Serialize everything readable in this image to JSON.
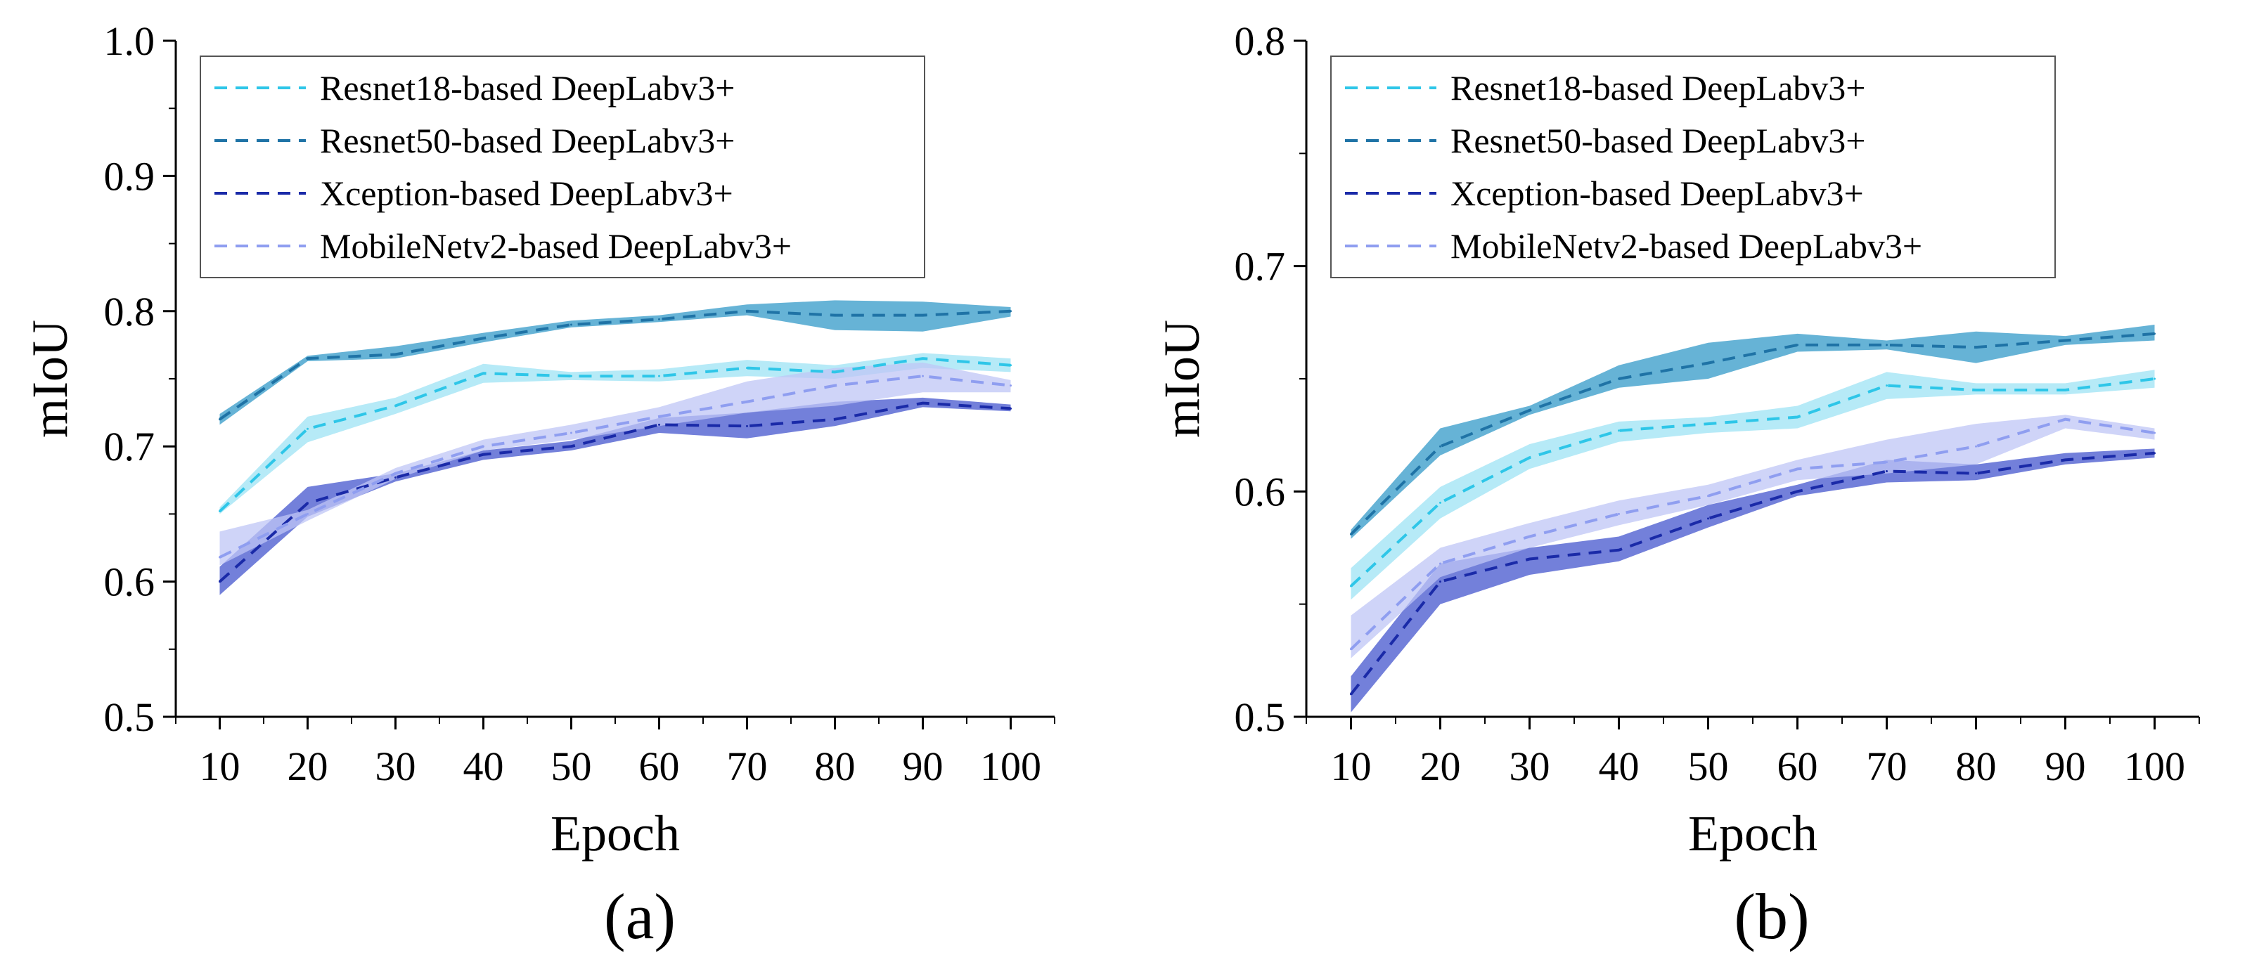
{
  "chart_data": [
    {
      "type": "line",
      "panel_label": "(a)",
      "xlabel": "Epoch",
      "ylabel": "mIoU",
      "xlim": [
        5,
        105
      ],
      "ylim": [
        0.5,
        1.0
      ],
      "x_ticks": [
        10,
        20,
        30,
        40,
        50,
        60,
        70,
        80,
        90,
        100
      ],
      "y_ticks": [
        0.5,
        0.6,
        0.7,
        0.8,
        0.9,
        1.0
      ],
      "y_tick_labels": [
        "0.5",
        "0.6",
        "0.7",
        "0.8",
        "0.9",
        "1.0"
      ],
      "legend_position": "top-left",
      "x": [
        10,
        20,
        30,
        40,
        50,
        60,
        70,
        80,
        90,
        100
      ],
      "series": [
        {
          "name": "Resnet18-based DeepLabv3+",
          "color": "#2ec6e8",
          "band_color": "#a9e6f6",
          "values": [
            0.652,
            0.713,
            0.73,
            0.754,
            0.752,
            0.752,
            0.758,
            0.755,
            0.765,
            0.76
          ],
          "lower": [
            0.65,
            0.703,
            0.724,
            0.747,
            0.749,
            0.748,
            0.752,
            0.75,
            0.758,
            0.755
          ],
          "upper": [
            0.655,
            0.722,
            0.736,
            0.761,
            0.755,
            0.757,
            0.764,
            0.76,
            0.769,
            0.765
          ]
        },
        {
          "name": "Resnet50-based DeepLabv3+",
          "color": "#1f73a6",
          "band_color": "#4ba6cf",
          "values": [
            0.72,
            0.765,
            0.768,
            0.78,
            0.79,
            0.794,
            0.8,
            0.797,
            0.797,
            0.8
          ],
          "lower": [
            0.716,
            0.763,
            0.765,
            0.777,
            0.788,
            0.792,
            0.797,
            0.786,
            0.785,
            0.796
          ],
          "upper": [
            0.724,
            0.767,
            0.774,
            0.784,
            0.793,
            0.797,
            0.805,
            0.808,
            0.807,
            0.803
          ]
        },
        {
          "name": "Xception-based DeepLabv3+",
          "color": "#1a2aa8",
          "band_color": "#5b6ad4",
          "values": [
            0.6,
            0.658,
            0.677,
            0.694,
            0.7,
            0.716,
            0.715,
            0.72,
            0.732,
            0.728
          ],
          "lower": [
            0.59,
            0.648,
            0.674,
            0.69,
            0.697,
            0.71,
            0.706,
            0.715,
            0.729,
            0.726
          ],
          "upper": [
            0.611,
            0.67,
            0.68,
            0.697,
            0.704,
            0.721,
            0.725,
            0.733,
            0.736,
            0.731
          ]
        },
        {
          "name": "MobileNetv2-based DeepLabv3+",
          "color": "#8f9ef0",
          "band_color": "#bfc6f5",
          "values": [
            0.618,
            0.65,
            0.68,
            0.7,
            0.71,
            0.722,
            0.733,
            0.745,
            0.752,
            0.745
          ],
          "lower": [
            0.612,
            0.645,
            0.676,
            0.697,
            0.705,
            0.715,
            0.725,
            0.73,
            0.74,
            0.74
          ],
          "upper": [
            0.637,
            0.653,
            0.684,
            0.705,
            0.716,
            0.729,
            0.748,
            0.758,
            0.762,
            0.749
          ]
        }
      ]
    },
    {
      "type": "line",
      "panel_label": "(b)",
      "xlabel": "Epoch",
      "ylabel": "mIoU",
      "xlim": [
        5,
        105
      ],
      "ylim": [
        0.5,
        0.8
      ],
      "x_ticks": [
        10,
        20,
        30,
        40,
        50,
        60,
        70,
        80,
        90,
        100
      ],
      "y_ticks": [
        0.5,
        0.6,
        0.7,
        0.8
      ],
      "y_tick_labels": [
        "0.5",
        "0.6",
        "0.7",
        "0.8"
      ],
      "legend_position": "top-left",
      "x": [
        10,
        20,
        30,
        40,
        50,
        60,
        70,
        80,
        90,
        100
      ],
      "series": [
        {
          "name": "Resnet18-based DeepLabv3+",
          "color": "#2ec6e8",
          "band_color": "#a9e6f6",
          "values": [
            0.558,
            0.595,
            0.615,
            0.627,
            0.63,
            0.633,
            0.647,
            0.645,
            0.645,
            0.65
          ],
          "lower": [
            0.552,
            0.588,
            0.61,
            0.622,
            0.626,
            0.628,
            0.641,
            0.643,
            0.643,
            0.646
          ],
          "upper": [
            0.566,
            0.602,
            0.621,
            0.631,
            0.633,
            0.638,
            0.653,
            0.648,
            0.648,
            0.654
          ]
        },
        {
          "name": "Resnet50-based DeepLabv3+",
          "color": "#1f73a6",
          "band_color": "#4ba6cf",
          "values": [
            0.581,
            0.62,
            0.636,
            0.65,
            0.657,
            0.665,
            0.665,
            0.664,
            0.667,
            0.67
          ],
          "lower": [
            0.579,
            0.616,
            0.634,
            0.646,
            0.65,
            0.662,
            0.663,
            0.657,
            0.665,
            0.667
          ],
          "upper": [
            0.583,
            0.628,
            0.638,
            0.656,
            0.666,
            0.67,
            0.667,
            0.671,
            0.669,
            0.674
          ]
        },
        {
          "name": "Xception-based DeepLabv3+",
          "color": "#1a2aa8",
          "band_color": "#5b6ad4",
          "values": [
            0.51,
            0.56,
            0.57,
            0.574,
            0.588,
            0.6,
            0.609,
            0.608,
            0.614,
            0.617
          ],
          "lower": [
            0.502,
            0.55,
            0.563,
            0.569,
            0.584,
            0.598,
            0.604,
            0.605,
            0.612,
            0.615
          ],
          "upper": [
            0.518,
            0.568,
            0.575,
            0.58,
            0.594,
            0.603,
            0.614,
            0.612,
            0.617,
            0.619
          ]
        },
        {
          "name": "MobileNetv2-based DeepLabv3+",
          "color": "#8f9ef0",
          "band_color": "#bfc6f5",
          "values": [
            0.53,
            0.568,
            0.58,
            0.59,
            0.598,
            0.61,
            0.613,
            0.62,
            0.632,
            0.626
          ],
          "lower": [
            0.526,
            0.562,
            0.575,
            0.585,
            0.594,
            0.605,
            0.608,
            0.612,
            0.628,
            0.623
          ],
          "upper": [
            0.545,
            0.575,
            0.586,
            0.596,
            0.603,
            0.614,
            0.623,
            0.63,
            0.634,
            0.628
          ]
        }
      ]
    }
  ]
}
